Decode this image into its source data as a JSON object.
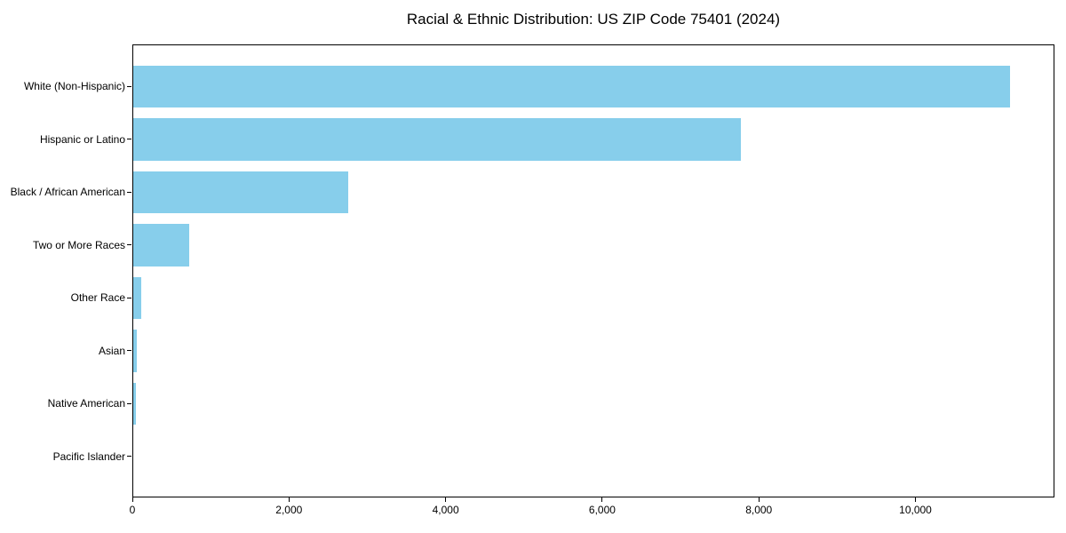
{
  "figure": {
    "title": "Racial & Ethnic Distribution: US ZIP Code 75401 (2024)"
  },
  "chart_data": {
    "type": "bar",
    "orientation": "horizontal",
    "title": "Racial & Ethnic Distribution: US ZIP Code 75401 (2024)",
    "categories": [
      "White (Non-Hispanic)",
      "Hispanic or Latino",
      "Black / African American",
      "Two or More Races",
      "Other Race",
      "Asian",
      "Native American",
      "Pacific Islander"
    ],
    "values": [
      11200,
      7760,
      2740,
      715,
      100,
      50,
      35,
      0
    ],
    "xlabel": "",
    "ylabel": "",
    "xlim": [
      0,
      11775
    ],
    "x_ticks": [
      0,
      2000,
      4000,
      6000,
      8000,
      10000
    ],
    "x_tick_labels": [
      "0",
      "2,000",
      "4,000",
      "6,000",
      "8,000",
      "10,000"
    ],
    "bar_color": "#87CEEB",
    "grid": false,
    "legend_position": "none"
  }
}
